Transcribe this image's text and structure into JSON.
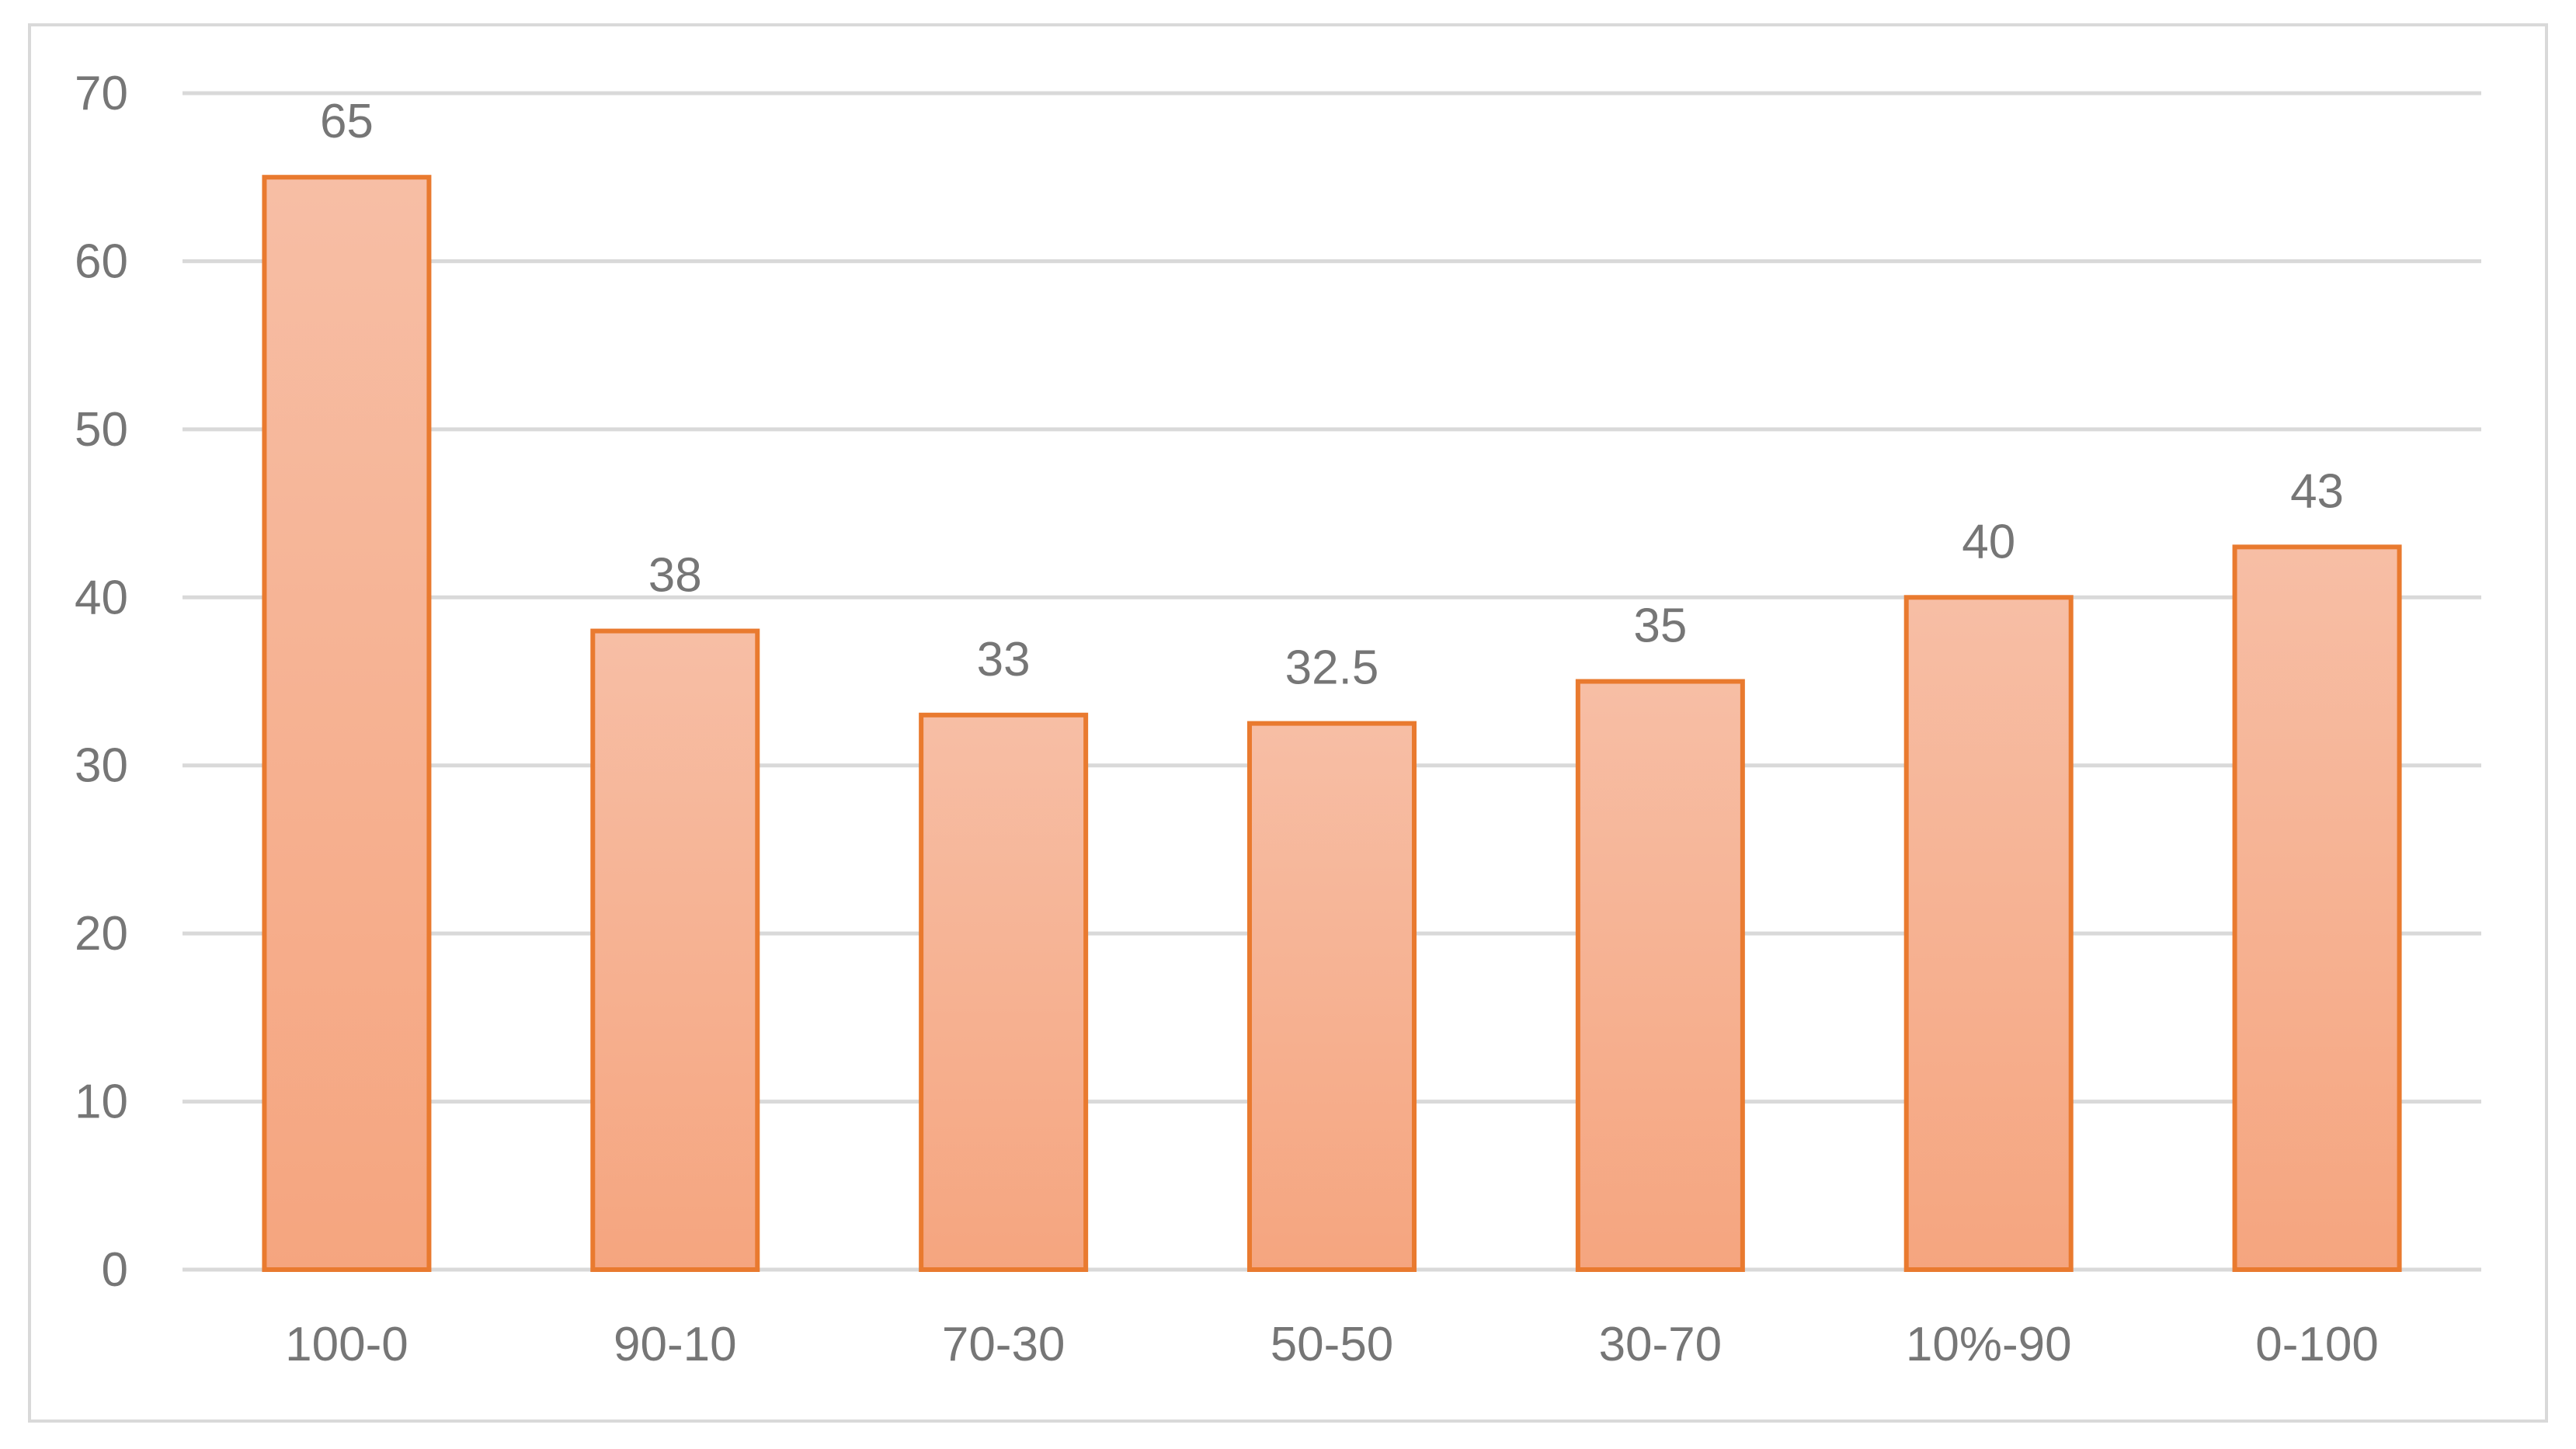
{
  "chart_data": {
    "type": "bar",
    "categories": [
      "100-0",
      "90-10",
      "70-30",
      "50-50",
      "30-70",
      "10%-90",
      "0-100"
    ],
    "values": [
      65,
      38,
      33,
      32.5,
      35,
      40,
      43
    ],
    "data_labels": [
      "65",
      "38",
      "33",
      "32.5",
      "35",
      "40",
      "43"
    ],
    "title": "",
    "xlabel": "",
    "ylabel": "",
    "ylim": [
      0,
      70
    ],
    "yticks": [
      0,
      10,
      20,
      30,
      40,
      50,
      60,
      70
    ],
    "grid": true,
    "legend": "none",
    "colors": {
      "bar_fill_top": "#f7bea5",
      "bar_fill_bottom": "#f5a57f",
      "bar_stroke": "#e97a2f",
      "grid": "#d9d9d9",
      "text": "#767676"
    }
  }
}
